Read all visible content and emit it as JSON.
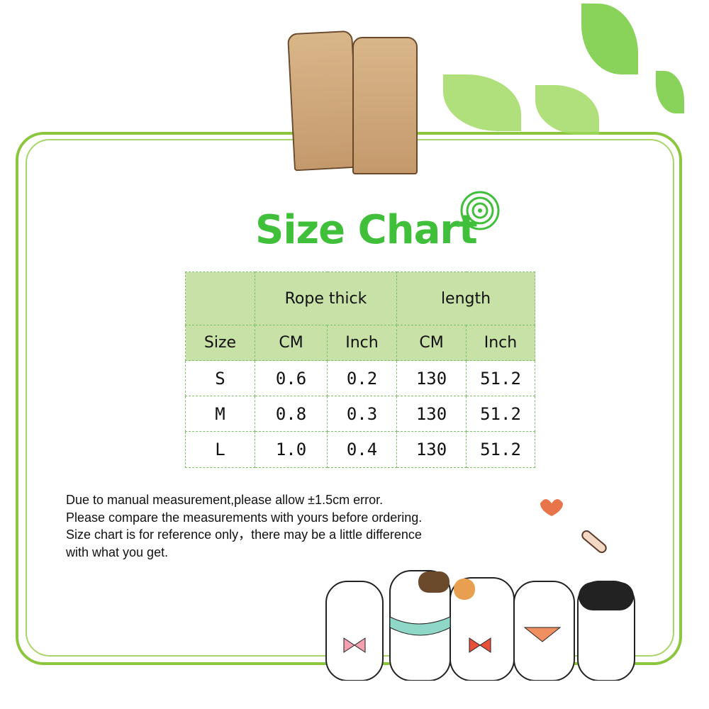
{
  "title": "Size Chart",
  "table": {
    "group_headers": [
      "Rope thick",
      "length"
    ],
    "columns": [
      "Size",
      "CM",
      "Inch",
      "CM",
      "Inch"
    ],
    "rows": [
      [
        "S",
        "0.6",
        "0.2",
        "130",
        "51.2"
      ],
      [
        "M",
        "0.8",
        "0.3",
        "130",
        "51.2"
      ],
      [
        "L",
        "1.0",
        "0.4",
        "130",
        "51.2"
      ]
    ]
  },
  "notes": [
    "Due to manual measurement,please allow ±1.5cm error.",
    "Please compare the measurements with yours before ordering.",
    "Size chart is for reference only，there may be a little difference",
    "with what you get."
  ],
  "colors": {
    "frame": "#8cc63f",
    "title": "#3fbf3a",
    "header_bg": "#c8e1a6"
  }
}
